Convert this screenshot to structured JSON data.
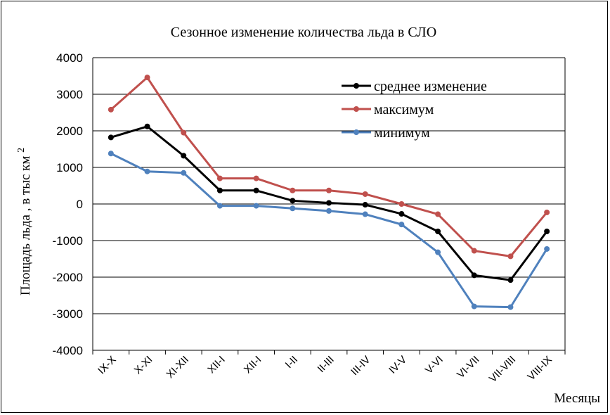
{
  "chart_data": {
    "type": "line",
    "title": "Сезонное изменение количества льда в СЛО",
    "xlabel": "Месяцы",
    "ylabel": "Площадь льда , в тыс км",
    "ylabel_sup": "2",
    "ylim": [
      -4000,
      4000
    ],
    "yticks": [
      4000,
      3000,
      2000,
      1000,
      0,
      -1000,
      -2000,
      -3000,
      -4000
    ],
    "grid": true,
    "legend_position": "top-right",
    "categories": [
      "IX-X",
      "X-XI",
      "XI-XII",
      "XII-I",
      "XII-I",
      "I-II",
      "II-III",
      "III-IV",
      "IV-V",
      "V-VI",
      "VI-VII",
      "VII-VIII",
      "VIII-IX"
    ],
    "series": [
      {
        "name": "среднее изменение",
        "color": "#000000",
        "values": [
          1820,
          2120,
          1320,
          370,
          370,
          90,
          30,
          -20,
          -270,
          -750,
          -1950,
          -2080,
          -750
        ]
      },
      {
        "name": "максимум",
        "color": "#c0504d",
        "values": [
          2580,
          3460,
          1950,
          700,
          700,
          370,
          370,
          270,
          0,
          -280,
          -1280,
          -1430,
          -230
        ]
      },
      {
        "name": "минимум",
        "color": "#4f81bd",
        "values": [
          1380,
          890,
          850,
          -50,
          -50,
          -120,
          -190,
          -280,
          -560,
          -1320,
          -2800,
          -2820,
          -1230
        ]
      }
    ]
  }
}
